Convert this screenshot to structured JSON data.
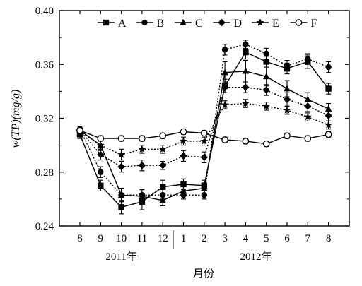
{
  "chart_data": {
    "type": "line",
    "xlabel": "月份",
    "ylabel": "w(TP)(mg/g)",
    "ylim": [
      0.24,
      0.4
    ],
    "yticks": [
      "0.24",
      "0.28",
      "0.32",
      "0.36",
      "0.40"
    ],
    "x": [
      "8",
      "9",
      "10",
      "11",
      "12",
      "1",
      "2",
      "3",
      "4",
      "5",
      "6",
      "7",
      "8"
    ],
    "year_groups": [
      {
        "label": "2011年",
        "months": [
          "8",
          "9",
          "10",
          "11",
          "12"
        ]
      },
      {
        "label": "2012年",
        "months": [
          "1",
          "2",
          "3",
          "4",
          "5",
          "6",
          "7",
          "8"
        ]
      }
    ],
    "legend_position": "top",
    "series": [
      {
        "name": "A",
        "marker": "square",
        "dash": "solid",
        "values": [
          0.308,
          0.27,
          0.254,
          0.258,
          0.269,
          0.271,
          0.27,
          0.344,
          0.369,
          0.362,
          0.357,
          0.362,
          0.342
        ],
        "errors": [
          0.003,
          0.004,
          0.005,
          0.006,
          0.005,
          0.004,
          0.004,
          0.005,
          0.005,
          0.004,
          0.004,
          0.005,
          0.004
        ]
      },
      {
        "name": "B",
        "marker": "circle",
        "dash": "dotted",
        "values": [
          0.312,
          0.28,
          0.263,
          0.263,
          0.263,
          0.263,
          0.263,
          0.371,
          0.375,
          0.368,
          0.359,
          0.364,
          0.358
        ],
        "errors": [
          0.002,
          0.004,
          0.005,
          0.004,
          0.003,
          0.003,
          0.003,
          0.004,
          0.003,
          0.004,
          0.004,
          0.004,
          0.004
        ]
      },
      {
        "name": "C",
        "marker": "triangle",
        "dash": "solid",
        "values": [
          0.311,
          0.3,
          0.263,
          0.262,
          0.259,
          0.266,
          0.268,
          0.354,
          0.355,
          0.351,
          0.342,
          0.334,
          0.327
        ],
        "errors": [
          0.003,
          0.004,
          0.005,
          0.004,
          0.004,
          0.004,
          0.004,
          0.008,
          0.008,
          0.007,
          0.006,
          0.005,
          0.004
        ]
      },
      {
        "name": "D",
        "marker": "diamond",
        "dash": "dotted",
        "values": [
          0.311,
          0.293,
          0.284,
          0.285,
          0.285,
          0.292,
          0.291,
          0.343,
          0.343,
          0.341,
          0.334,
          0.329,
          0.322
        ],
        "errors": [
          0.003,
          0.004,
          0.004,
          0.004,
          0.003,
          0.004,
          0.004,
          0.004,
          0.004,
          0.004,
          0.005,
          0.004,
          0.004
        ]
      },
      {
        "name": "E",
        "marker": "star",
        "dash": "dotted",
        "values": [
          0.31,
          0.3,
          0.293,
          0.297,
          0.297,
          0.303,
          0.303,
          0.33,
          0.331,
          0.329,
          0.326,
          0.321,
          0.315
        ],
        "errors": [
          0.002,
          0.003,
          0.004,
          0.003,
          0.003,
          0.003,
          0.003,
          0.003,
          0.003,
          0.003,
          0.003,
          0.003,
          0.003
        ]
      },
      {
        "name": "F",
        "marker": "open-circle",
        "dash": "solid",
        "values": [
          0.311,
          0.305,
          0.305,
          0.305,
          0.307,
          0.31,
          0.309,
          0.304,
          0.303,
          0.301,
          0.307,
          0.305,
          0.308
        ],
        "errors": [
          0.002,
          0.002,
          0.002,
          0.002,
          0.002,
          0.002,
          0.002,
          0.002,
          0.002,
          0.002,
          0.002,
          0.002,
          0.002
        ]
      }
    ],
    "colors": {
      "stroke": "#000000",
      "background": "#ffffff"
    }
  }
}
